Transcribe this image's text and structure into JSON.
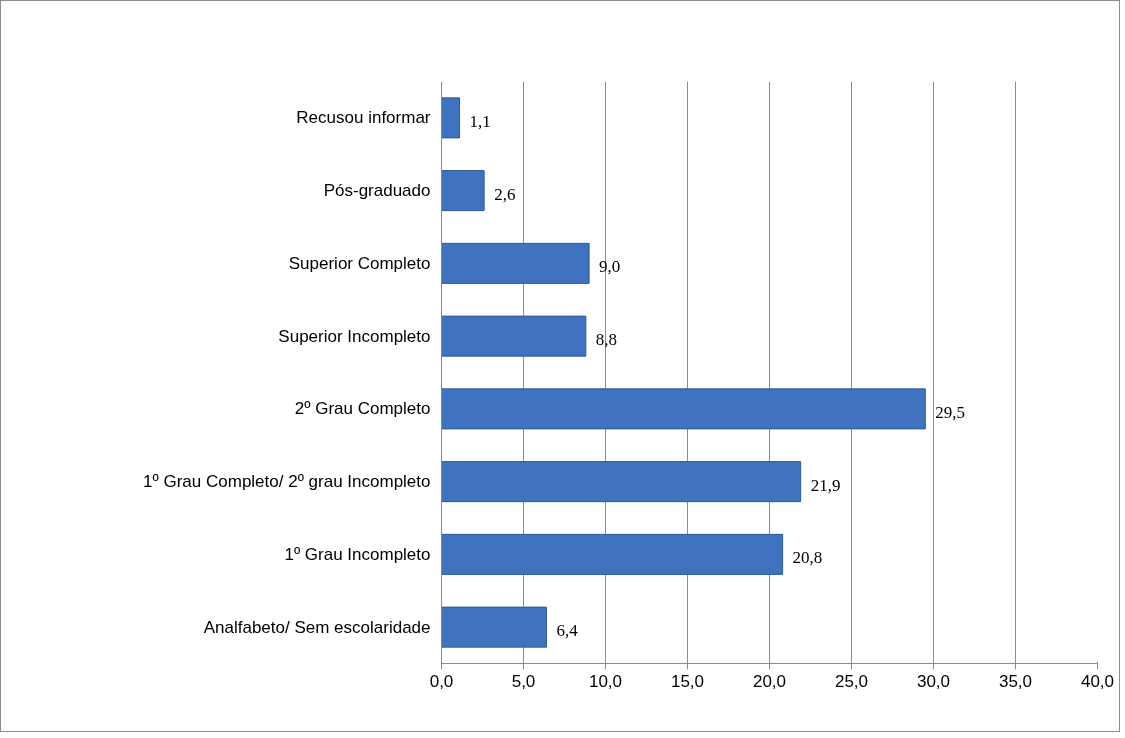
{
  "chart_data": {
    "type": "bar",
    "orientation": "horizontal",
    "categories": [
      "Recusou informar",
      "Pós-graduado",
      "Superior Completo",
      "Superior Incompleto",
      "2º Grau Completo",
      "1º Grau Completo/ 2º grau Incompleto",
      "1º Grau Incompleto",
      "Analfabeto/ Sem escolaridade"
    ],
    "values": [
      1.1,
      2.6,
      9.0,
      8.8,
      29.5,
      21.9,
      20.8,
      6.4
    ],
    "value_labels": [
      "1,1",
      "2,6",
      "9,0",
      "8,8",
      "29,5",
      "21,9",
      "20,8",
      "6,4"
    ],
    "color": "#3f72bf",
    "xlim": [
      0,
      40
    ],
    "xticks": [
      {
        "value": 0,
        "label": "0,0"
      },
      {
        "value": 5,
        "label": "5,0"
      },
      {
        "value": 10,
        "label": "10,0"
      },
      {
        "value": 15,
        "label": "15,0"
      },
      {
        "value": 20,
        "label": "20,0"
      },
      {
        "value": 25,
        "label": "25,0"
      },
      {
        "value": 30,
        "label": "30,0"
      },
      {
        "value": 35,
        "label": "35,0"
      },
      {
        "value": 40,
        "label": "40,0"
      }
    ],
    "grid": "x"
  }
}
